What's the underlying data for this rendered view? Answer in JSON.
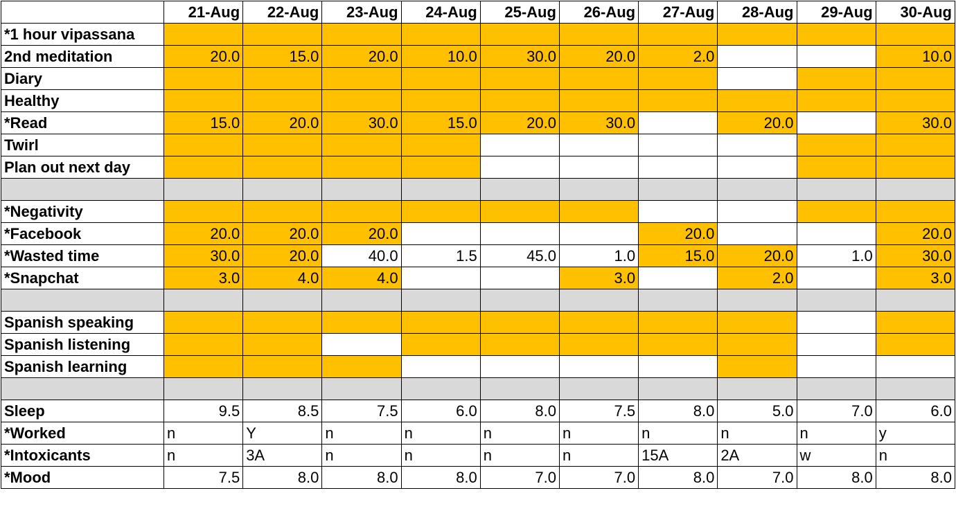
{
  "colors": {
    "highlight": "#ffc000",
    "separator": "#d9d9d9",
    "blank": "#ffffff"
  },
  "dates": [
    "21-Aug",
    "22-Aug",
    "23-Aug",
    "24-Aug",
    "25-Aug",
    "26-Aug",
    "27-Aug",
    "28-Aug",
    "29-Aug",
    "30-Aug"
  ],
  "rows": [
    {
      "label": "*1 hour vipassana",
      "cells": [
        {
          "v": "",
          "y": true
        },
        {
          "v": "",
          "y": true
        },
        {
          "v": "",
          "y": true
        },
        {
          "v": "",
          "y": true
        },
        {
          "v": "",
          "y": true
        },
        {
          "v": "",
          "y": true
        },
        {
          "v": "",
          "y": true
        },
        {
          "v": "",
          "y": true
        },
        {
          "v": "",
          "y": true
        },
        {
          "v": "",
          "y": true
        }
      ]
    },
    {
      "label": "2nd meditation",
      "cells": [
        {
          "v": "20.0",
          "y": true
        },
        {
          "v": "15.0",
          "y": true
        },
        {
          "v": "20.0",
          "y": true
        },
        {
          "v": "10.0",
          "y": true
        },
        {
          "v": "30.0",
          "y": true
        },
        {
          "v": "20.0",
          "y": true
        },
        {
          "v": "2.0",
          "y": true
        },
        {
          "v": "",
          "y": false
        },
        {
          "v": "",
          "y": false
        },
        {
          "v": "10.0",
          "y": true
        }
      ]
    },
    {
      "label": "Diary",
      "cells": [
        {
          "v": "",
          "y": true
        },
        {
          "v": "",
          "y": true
        },
        {
          "v": "",
          "y": true
        },
        {
          "v": "",
          "y": true
        },
        {
          "v": "",
          "y": true
        },
        {
          "v": "",
          "y": true
        },
        {
          "v": "",
          "y": true
        },
        {
          "v": "",
          "y": false
        },
        {
          "v": "",
          "y": true
        },
        {
          "v": "",
          "y": true
        }
      ]
    },
    {
      "label": "Healthy",
      "cells": [
        {
          "v": "",
          "y": true
        },
        {
          "v": "",
          "y": true
        },
        {
          "v": "",
          "y": true
        },
        {
          "v": "",
          "y": true
        },
        {
          "v": "",
          "y": true
        },
        {
          "v": "",
          "y": true
        },
        {
          "v": "",
          "y": true
        },
        {
          "v": "",
          "y": true
        },
        {
          "v": "",
          "y": true
        },
        {
          "v": "",
          "y": true
        }
      ]
    },
    {
      "label": "*Read",
      "cells": [
        {
          "v": "15.0",
          "y": true
        },
        {
          "v": "20.0",
          "y": true
        },
        {
          "v": "30.0",
          "y": true
        },
        {
          "v": "15.0",
          "y": true
        },
        {
          "v": "20.0",
          "y": true
        },
        {
          "v": "30.0",
          "y": true
        },
        {
          "v": "",
          "y": false
        },
        {
          "v": "20.0",
          "y": true
        },
        {
          "v": "",
          "y": false
        },
        {
          "v": "30.0",
          "y": true
        }
      ]
    },
    {
      "label": "Twirl",
      "cells": [
        {
          "v": "",
          "y": true
        },
        {
          "v": "",
          "y": true
        },
        {
          "v": "",
          "y": true
        },
        {
          "v": "",
          "y": true
        },
        {
          "v": "",
          "y": false
        },
        {
          "v": "",
          "y": false
        },
        {
          "v": "",
          "y": false
        },
        {
          "v": "",
          "y": false
        },
        {
          "v": "",
          "y": true
        },
        {
          "v": "",
          "y": true
        }
      ]
    },
    {
      "label": "Plan out next day",
      "cells": [
        {
          "v": "",
          "y": true
        },
        {
          "v": "",
          "y": true
        },
        {
          "v": "",
          "y": true
        },
        {
          "v": "",
          "y": true
        },
        {
          "v": "",
          "y": false
        },
        {
          "v": "",
          "y": false
        },
        {
          "v": "",
          "y": false
        },
        {
          "v": "",
          "y": false
        },
        {
          "v": "",
          "y": true
        },
        {
          "v": "",
          "y": true
        }
      ]
    },
    {
      "separator": true
    },
    {
      "label": "*Negativity",
      "cells": [
        {
          "v": "",
          "y": true
        },
        {
          "v": "",
          "y": true
        },
        {
          "v": "",
          "y": true
        },
        {
          "v": "",
          "y": true
        },
        {
          "v": "",
          "y": true
        },
        {
          "v": "",
          "y": true
        },
        {
          "v": "",
          "y": false
        },
        {
          "v": "",
          "y": false
        },
        {
          "v": "",
          "y": true
        },
        {
          "v": "",
          "y": true
        }
      ]
    },
    {
      "label": "*Facebook",
      "cells": [
        {
          "v": "20.0",
          "y": true
        },
        {
          "v": "20.0",
          "y": true
        },
        {
          "v": "20.0",
          "y": true
        },
        {
          "v": "",
          "y": false
        },
        {
          "v": "",
          "y": false
        },
        {
          "v": "",
          "y": false
        },
        {
          "v": "20.0",
          "y": true
        },
        {
          "v": "",
          "y": false
        },
        {
          "v": "",
          "y": false
        },
        {
          "v": "20.0",
          "y": true
        }
      ]
    },
    {
      "label": "*Wasted time",
      "cells": [
        {
          "v": "30.0",
          "y": true
        },
        {
          "v": "20.0",
          "y": true
        },
        {
          "v": "40.0",
          "y": false
        },
        {
          "v": "1.5",
          "y": false
        },
        {
          "v": "45.0",
          "y": false
        },
        {
          "v": "1.0",
          "y": false
        },
        {
          "v": "15.0",
          "y": true
        },
        {
          "v": "20.0",
          "y": true
        },
        {
          "v": "1.0",
          "y": false
        },
        {
          "v": "30.0",
          "y": true
        }
      ]
    },
    {
      "label": "*Snapchat",
      "cells": [
        {
          "v": "3.0",
          "y": true
        },
        {
          "v": "4.0",
          "y": true
        },
        {
          "v": "4.0",
          "y": true
        },
        {
          "v": "",
          "y": false
        },
        {
          "v": "",
          "y": false
        },
        {
          "v": "3.0",
          "y": true
        },
        {
          "v": "",
          "y": false
        },
        {
          "v": "2.0",
          "y": true
        },
        {
          "v": "",
          "y": false
        },
        {
          "v": "3.0",
          "y": true
        }
      ]
    },
    {
      "separator": true
    },
    {
      "label": "Spanish speaking",
      "cells": [
        {
          "v": "",
          "y": true
        },
        {
          "v": "",
          "y": true
        },
        {
          "v": "",
          "y": true
        },
        {
          "v": "",
          "y": true
        },
        {
          "v": "",
          "y": true
        },
        {
          "v": "",
          "y": true
        },
        {
          "v": "",
          "y": true
        },
        {
          "v": "",
          "y": true
        },
        {
          "v": "",
          "y": false
        },
        {
          "v": "",
          "y": true
        }
      ]
    },
    {
      "label": "Spanish listening",
      "cells": [
        {
          "v": "",
          "y": true
        },
        {
          "v": "",
          "y": true
        },
        {
          "v": "",
          "y": false
        },
        {
          "v": "",
          "y": true
        },
        {
          "v": "",
          "y": true
        },
        {
          "v": "",
          "y": true
        },
        {
          "v": "",
          "y": true
        },
        {
          "v": "",
          "y": true
        },
        {
          "v": "",
          "y": false
        },
        {
          "v": "",
          "y": true
        }
      ]
    },
    {
      "label": "Spanish learning",
      "cells": [
        {
          "v": "",
          "y": true
        },
        {
          "v": "",
          "y": true
        },
        {
          "v": "",
          "y": true
        },
        {
          "v": "",
          "y": false
        },
        {
          "v": "",
          "y": false
        },
        {
          "v": "",
          "y": false
        },
        {
          "v": "",
          "y": false
        },
        {
          "v": "",
          "y": true
        },
        {
          "v": "",
          "y": false
        },
        {
          "v": "",
          "y": false
        }
      ]
    },
    {
      "separator": true
    },
    {
      "label": "Sleep",
      "cells": [
        {
          "v": "9.5",
          "y": false
        },
        {
          "v": "8.5",
          "y": false
        },
        {
          "v": "7.5",
          "y": false
        },
        {
          "v": "6.0",
          "y": false
        },
        {
          "v": "8.0",
          "y": false
        },
        {
          "v": "7.5",
          "y": false
        },
        {
          "v": "8.0",
          "y": false
        },
        {
          "v": "5.0",
          "y": false
        },
        {
          "v": "7.0",
          "y": false
        },
        {
          "v": "6.0",
          "y": false
        }
      ]
    },
    {
      "label": "*Worked",
      "text": true,
      "cells": [
        {
          "v": "n",
          "y": false
        },
        {
          "v": "Y",
          "y": false
        },
        {
          "v": "n",
          "y": false
        },
        {
          "v": "n",
          "y": false
        },
        {
          "v": "n",
          "y": false
        },
        {
          "v": "n",
          "y": false
        },
        {
          "v": "n",
          "y": false
        },
        {
          "v": "n",
          "y": false
        },
        {
          "v": "n",
          "y": false
        },
        {
          "v": "y",
          "y": false
        }
      ]
    },
    {
      "label": "*Intoxicants",
      "text": true,
      "cells": [
        {
          "v": "n",
          "y": false
        },
        {
          "v": "3A",
          "y": false
        },
        {
          "v": "n",
          "y": false
        },
        {
          "v": "n",
          "y": false
        },
        {
          "v": "n",
          "y": false
        },
        {
          "v": "n",
          "y": false
        },
        {
          "v": "15A",
          "y": false
        },
        {
          "v": "2A",
          "y": false
        },
        {
          "v": "w",
          "y": false
        },
        {
          "v": "n",
          "y": false
        }
      ]
    },
    {
      "label": "*Mood",
      "cells": [
        {
          "v": "7.5",
          "y": false
        },
        {
          "v": "8.0",
          "y": false
        },
        {
          "v": "8.0",
          "y": false
        },
        {
          "v": "8.0",
          "y": false
        },
        {
          "v": "7.0",
          "y": false
        },
        {
          "v": "7.0",
          "y": false
        },
        {
          "v": "8.0",
          "y": false
        },
        {
          "v": "7.0",
          "y": false
        },
        {
          "v": "8.0",
          "y": false
        },
        {
          "v": "8.0",
          "y": false
        }
      ]
    }
  ]
}
